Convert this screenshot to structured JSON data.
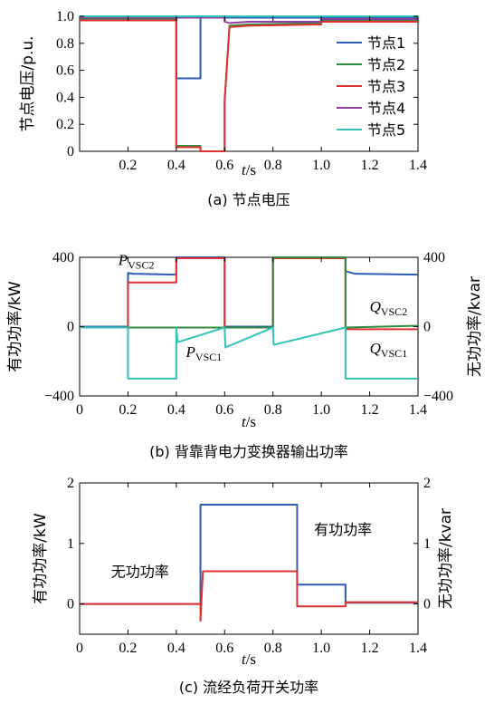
{
  "chart_data": [
    {
      "id": "a",
      "type": "line",
      "caption": "(a)  节点电压",
      "xlabel": "t/s",
      "ylabel": "节点电压/p.u.",
      "xlim": [
        0,
        1.4
      ],
      "ylim": [
        0,
        1.0
      ],
      "xticks": [
        0.2,
        0.4,
        0.6,
        0.8,
        1.0,
        1.2,
        1.4
      ],
      "xtick_labels": [
        "0.2",
        "0.4",
        "0.6",
        "0.8",
        "1.0",
        "1.2",
        "1.4"
      ],
      "yticks": [
        0,
        0.2,
        0.4,
        0.6,
        0.8,
        1.0
      ],
      "ytick_labels": [
        "0",
        "0.2",
        "0.4",
        "0.6",
        "0.8",
        "1.0"
      ],
      "grid": false,
      "legend_position": "right",
      "series": [
        {
          "name": "节点1",
          "color": "#2d5bb8",
          "x": [
            0,
            0.4,
            0.4,
            0.5,
            0.5,
            0.6,
            0.6,
            0.7,
            1.0,
            1.4
          ],
          "y": [
            0.99,
            0.99,
            0.54,
            0.54,
            1.0,
            1.0,
            0.99,
            0.99,
            0.99,
            0.99
          ]
        },
        {
          "name": "节点2",
          "color": "#2e8b3d",
          "x": [
            0,
            0.4,
            0.4,
            0.5,
            0.5,
            0.6,
            0.6,
            0.62,
            0.7,
            1.0,
            1.0,
            1.4
          ],
          "y": [
            0.98,
            0.98,
            0.04,
            0.04,
            0.0,
            0.0,
            0.38,
            0.93,
            0.94,
            0.95,
            0.97,
            0.97
          ]
        },
        {
          "name": "节点3",
          "color": "#e03030",
          "x": [
            0,
            0.4,
            0.4,
            0.5,
            0.5,
            0.6,
            0.6,
            0.62,
            0.7,
            1.0,
            1.0,
            1.4
          ],
          "y": [
            0.97,
            0.97,
            0.03,
            0.03,
            0.0,
            0.0,
            0.37,
            0.92,
            0.93,
            0.94,
            0.96,
            0.96
          ]
        },
        {
          "name": "节点4",
          "color": "#8e3d9c",
          "x": [
            0,
            0.4,
            0.4,
            0.6,
            0.6,
            0.62,
            0.7,
            1.0,
            1.0,
            1.4
          ],
          "y": [
            0.99,
            0.99,
            0.99,
            0.99,
            0.96,
            0.95,
            0.96,
            0.96,
            0.98,
            0.98
          ]
        },
        {
          "name": "节点5",
          "color": "#2fc2b5",
          "x": [
            0,
            1.4
          ],
          "y": [
            1.0,
            1.0
          ]
        }
      ]
    },
    {
      "id": "b",
      "type": "line",
      "caption": "(b)  背靠背电力变换器输出功率",
      "xlabel": "t/s",
      "ylabel": "有功功率/kW",
      "ylabel_right": "无功功率/kvar",
      "xlim": [
        0,
        1.4
      ],
      "ylim": [
        -400,
        400
      ],
      "xticks": [
        0,
        0.2,
        0.4,
        0.6,
        0.8,
        1.0,
        1.2,
        1.4
      ],
      "xtick_labels": [
        "0",
        "0.2",
        "0.4",
        "0.6",
        "0.8",
        "1.0",
        "1.2",
        "1.4"
      ],
      "yticks": [
        -400,
        0,
        400
      ],
      "ytick_labels": [
        "−400",
        "0",
        "400"
      ],
      "ytick_labels_right": [
        "−400",
        "0",
        "400"
      ],
      "grid": false,
      "annotations": [
        {
          "sym": "P",
          "sub": "VSC2",
          "at": [
            0.16,
            355
          ]
        },
        {
          "sym": "P",
          "sub": "VSC1",
          "at": [
            0.44,
            -175
          ]
        },
        {
          "sym": "Q",
          "sub": "VSC2",
          "at": [
            1.2,
            85
          ]
        },
        {
          "sym": "Q",
          "sub": "VSC1",
          "at": [
            1.2,
            -155
          ]
        }
      ],
      "series": [
        {
          "name": "P_VSC2",
          "color": "#2d5bb8",
          "x": [
            0,
            0.2,
            0.2,
            0.22,
            0.4,
            0.4,
            0.6,
            0.6,
            0.8,
            0.8,
            1.1,
            1.1,
            1.14,
            1.4
          ],
          "y": [
            0,
            0,
            310,
            305,
            300,
            400,
            400,
            0,
            0,
            400,
            400,
            320,
            305,
            300
          ]
        },
        {
          "name": "P_VSC1",
          "color": "#e03030",
          "x": [
            0,
            0.2,
            0.2,
            0.4,
            0.4,
            0.6,
            0.6,
            0.8,
            0.8,
            1.1,
            1.1,
            1.4
          ],
          "y": [
            -5,
            -5,
            255,
            255,
            395,
            395,
            -5,
            -5,
            395,
            395,
            -15,
            -15
          ]
        },
        {
          "name": "Q_VSC2",
          "color": "#2e8b3d",
          "x": [
            0,
            0.6,
            0.6,
            0.8,
            0.8,
            1.1,
            1.1,
            1.4
          ],
          "y": [
            -5,
            -5,
            -5,
            -5,
            400,
            400,
            -5,
            5
          ]
        },
        {
          "name": "Q_VSC1",
          "color": "#2fc2b5",
          "x": [
            0,
            0.2,
            0.2,
            0.4,
            0.4,
            0.405,
            0.6,
            0.6,
            0.603,
            0.8,
            0.8,
            0.803,
            1.1,
            1.1,
            1.4
          ],
          "y": [
            -5,
            -5,
            -300,
            -300,
            -5,
            -90,
            -5,
            -5,
            -120,
            -5,
            -5,
            -105,
            -5,
            -300,
            -300
          ]
        }
      ]
    },
    {
      "id": "c",
      "type": "line",
      "caption": "(c)  流经负荷开关功率",
      "xlabel": "t/s",
      "ylabel": "有功功率/kW",
      "ylabel_right": "无功功率/kvar",
      "xlim": [
        0,
        1.4
      ],
      "ylim": [
        -0.5,
        2
      ],
      "xticks": [
        0,
        0.2,
        0.4,
        0.6,
        0.8,
        1.0,
        1.2,
        1.4
      ],
      "xtick_labels": [
        "0",
        "0.2",
        "0.4",
        "0.6",
        "0.8",
        "1.0",
        "1.2",
        "1.4"
      ],
      "yticks": [
        0,
        1,
        2
      ],
      "ytick_labels": [
        "0",
        "1",
        "2"
      ],
      "ytick_labels_right": [
        "0",
        "1",
        "2"
      ],
      "grid": false,
      "annotations": [
        {
          "text": "有功功率",
          "at": [
            0.97,
            1.15
          ]
        },
        {
          "text": "无功功率",
          "at": [
            0.13,
            0.45
          ]
        }
      ],
      "series": [
        {
          "name": "有功功率",
          "color": "#2d5bb8",
          "x": [
            0,
            0.5,
            0.5,
            0.9,
            0.9,
            1.1,
            1.1,
            1.4
          ],
          "y": [
            0,
            0,
            1.64,
            1.64,
            0.32,
            0.32,
            0.02,
            0.02
          ]
        },
        {
          "name": "无功功率",
          "color": "#e03030",
          "x": [
            0,
            0.5,
            0.5,
            0.51,
            0.9,
            0.9,
            1.1,
            1.1,
            1.4
          ],
          "y": [
            0,
            0,
            -0.28,
            0.54,
            0.54,
            -0.04,
            -0.04,
            0.03,
            0.03
          ]
        }
      ]
    }
  ]
}
